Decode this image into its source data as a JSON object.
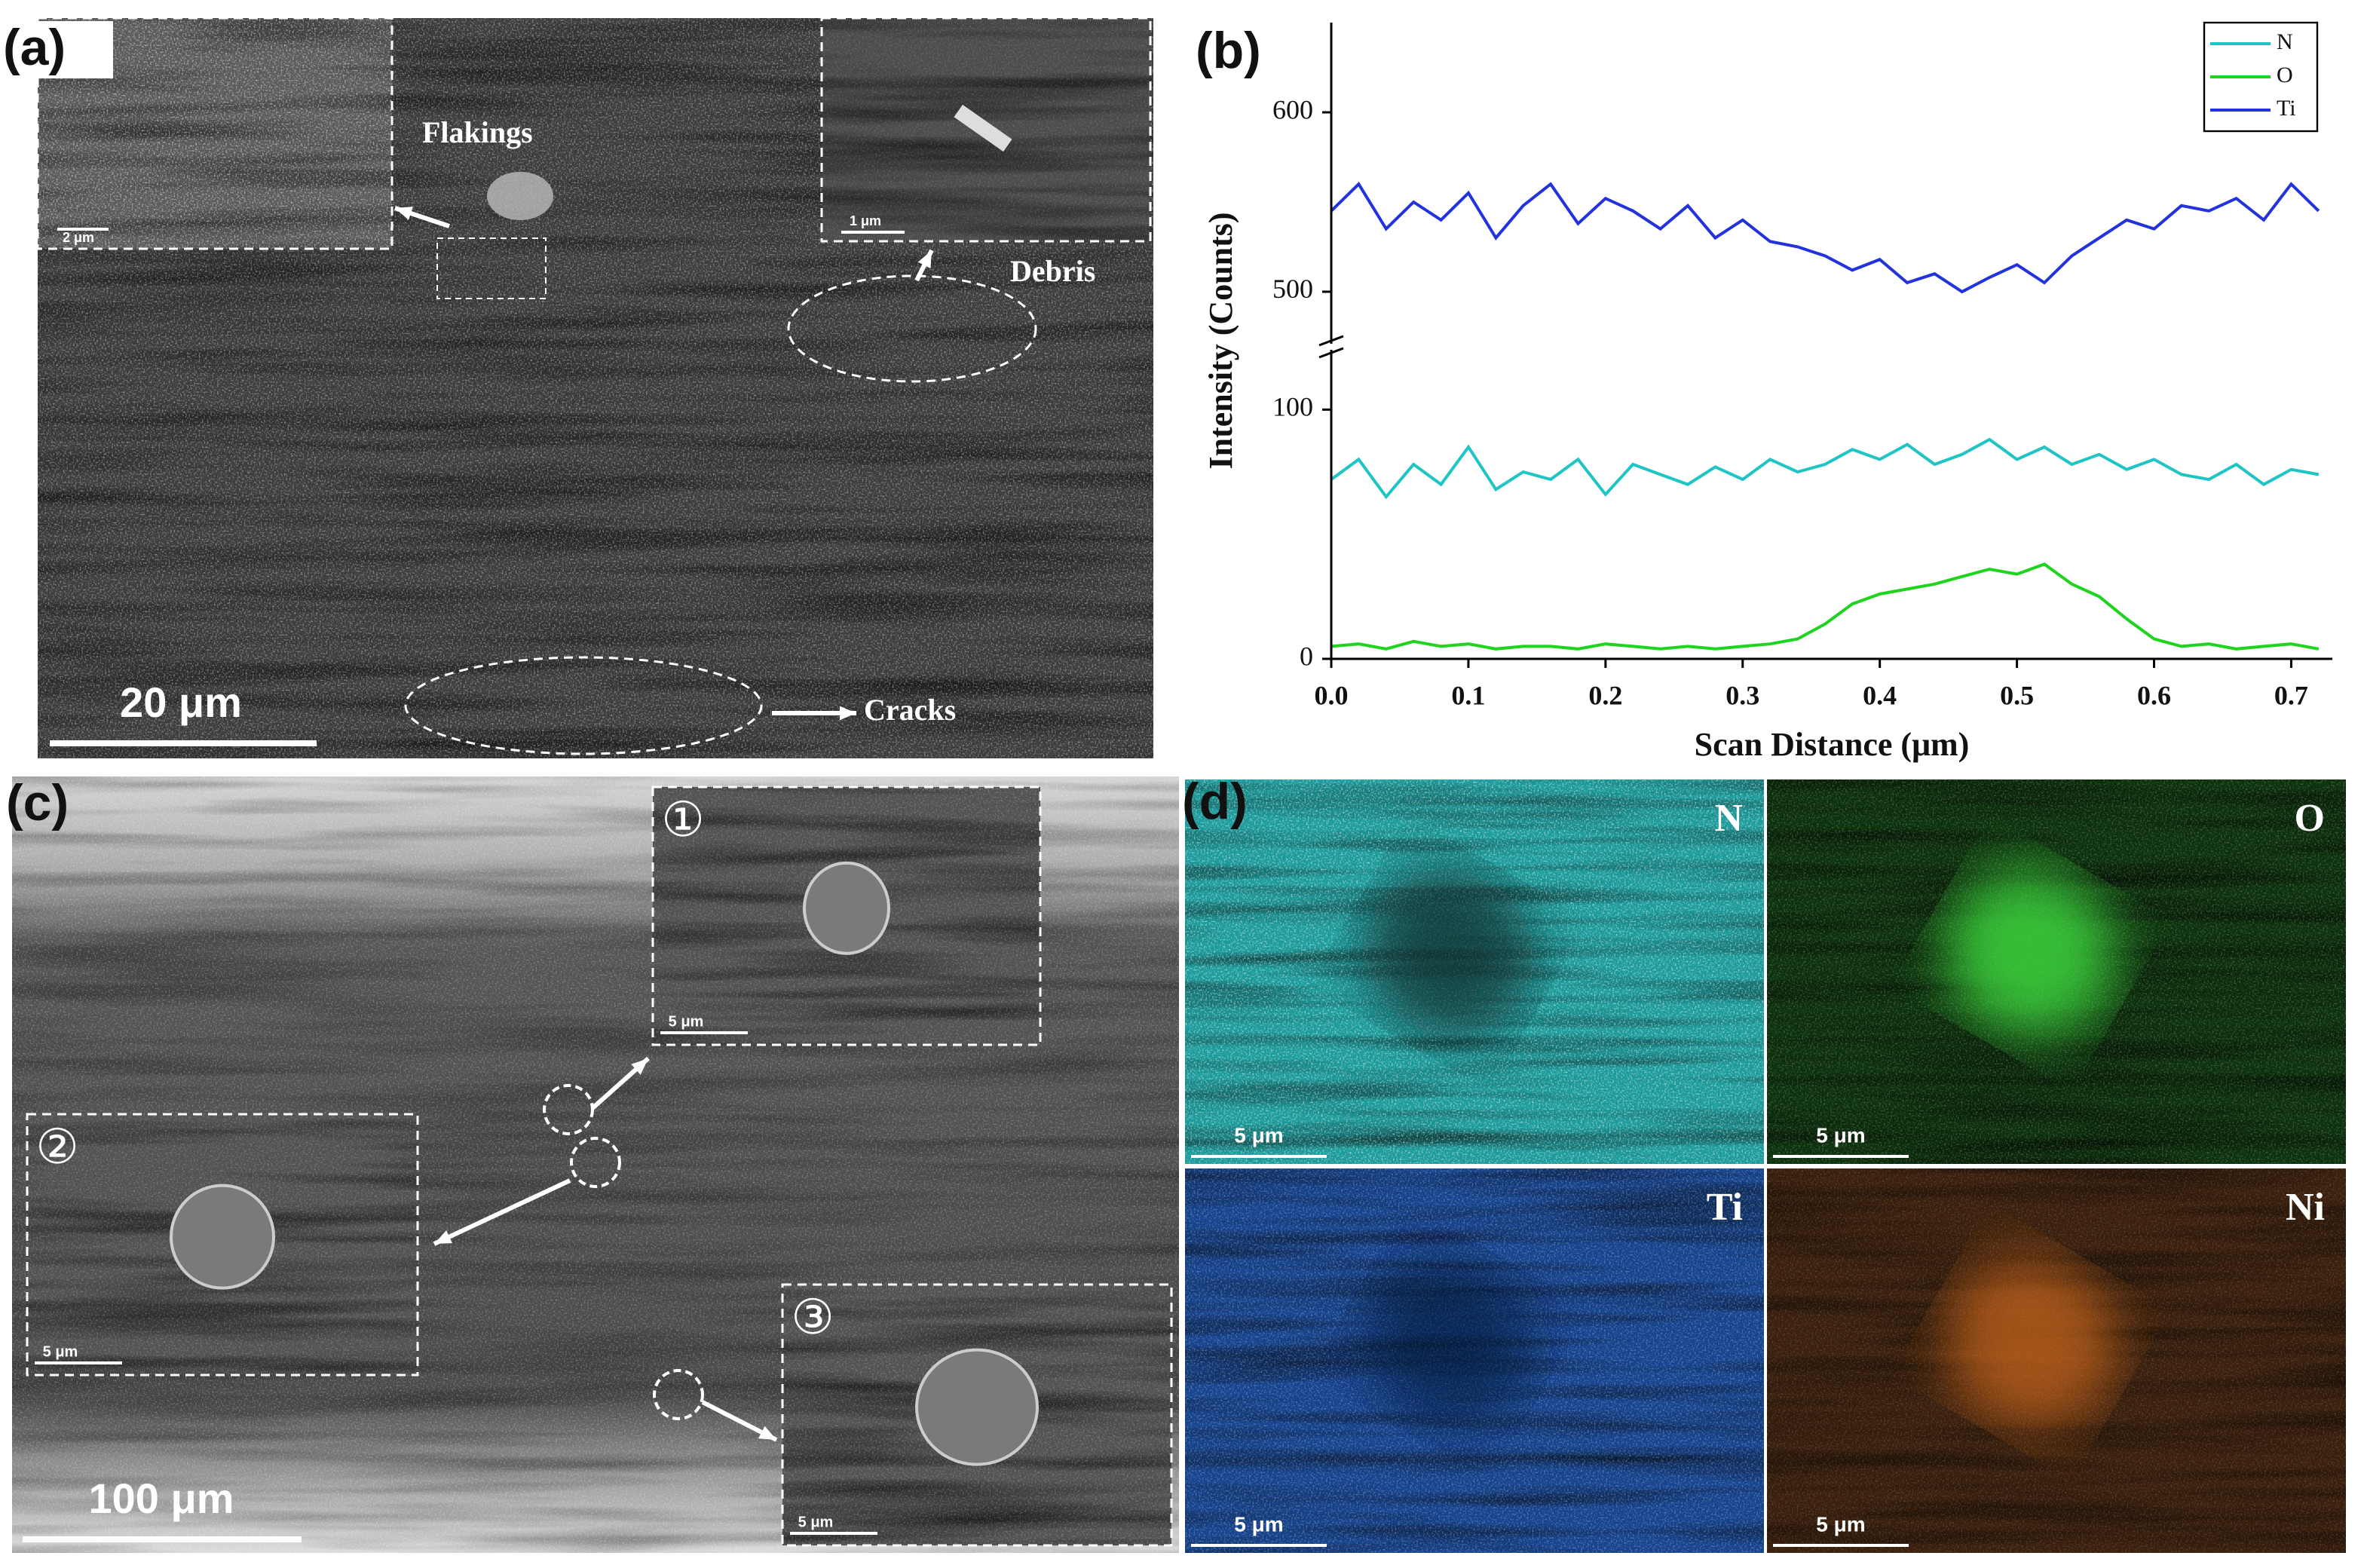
{
  "panels": {
    "a": {
      "label": "(a)",
      "annotations": [
        "Flakings",
        "Debris",
        "Cracks"
      ],
      "scale_bar": "20 μm",
      "inset_scale_bars": [
        "2 μm",
        "1 μm"
      ]
    },
    "b": {
      "label": "(b)"
    },
    "c": {
      "label": "(c)",
      "scale_bar": "100 μm",
      "insets": [
        {
          "number": "①",
          "scale_bar": "5 μm"
        },
        {
          "number": "②",
          "scale_bar": "5 μm"
        },
        {
          "number": "③",
          "scale_bar": "5 μm"
        }
      ]
    },
    "d": {
      "label": "(d)",
      "maps": [
        {
          "element": "N",
          "scale_bar": "5 μm"
        },
        {
          "element": "O",
          "scale_bar": "5 μm"
        },
        {
          "element": "Ti",
          "scale_bar": "5 μm"
        },
        {
          "element": "Ni",
          "scale_bar": "5 μm"
        }
      ]
    }
  },
  "chart_data": {
    "type": "line",
    "xlabel": "Scan Distance (μm)",
    "ylabel": "Intensity (Counts)",
    "x": [
      0,
      0.02,
      0.04,
      0.06,
      0.08,
      0.1,
      0.12,
      0.14,
      0.16,
      0.18,
      0.2,
      0.22,
      0.24,
      0.26,
      0.28,
      0.3,
      0.32,
      0.34,
      0.36,
      0.38,
      0.4,
      0.42,
      0.44,
      0.46,
      0.48,
      0.5,
      0.52,
      0.54,
      0.56,
      0.58,
      0.6,
      0.62,
      0.64,
      0.66,
      0.68,
      0.7,
      0.72
    ],
    "xlim": [
      0,
      0.73
    ],
    "xticks": [
      {
        "value": 0,
        "label": "0.0"
      },
      0.1,
      0.2,
      0.3,
      0.4,
      0.5,
      0.6,
      0.7
    ],
    "y_segments": [
      {
        "ylim": [
          0,
          124
        ],
        "yticks": [
          0,
          100
        ]
      },
      {
        "ylim": [
          471,
          650
        ],
        "yticks": [
          500,
          600
        ]
      }
    ],
    "legend": "upper right",
    "series": [
      {
        "name": "N",
        "color": "#1fc4c4",
        "values": [
          72,
          80,
          65,
          78,
          70,
          85,
          68,
          75,
          72,
          80,
          66,
          78,
          74,
          70,
          77,
          72,
          80,
          75,
          78,
          84,
          80,
          86,
          78,
          82,
          88,
          80,
          85,
          78,
          82,
          76,
          80,
          74,
          72,
          78,
          70,
          76,
          74
        ]
      },
      {
        "name": "O",
        "color": "#1ed41e",
        "values": [
          5,
          6,
          4,
          7,
          5,
          6,
          4,
          5,
          5,
          4,
          6,
          5,
          4,
          5,
          4,
          5,
          6,
          8,
          14,
          22,
          26,
          28,
          30,
          33,
          36,
          34,
          38,
          30,
          25,
          16,
          8,
          5,
          6,
          4,
          5,
          6,
          4
        ]
      },
      {
        "name": "Ti",
        "color": "#2233dd",
        "values": [
          545,
          560,
          535,
          550,
          540,
          555,
          530,
          548,
          560,
          538,
          552,
          545,
          535,
          548,
          530,
          540,
          528,
          525,
          520,
          512,
          518,
          505,
          510,
          500,
          508,
          515,
          505,
          520,
          530,
          540,
          535,
          548,
          545,
          552,
          540,
          560,
          545
        ]
      }
    ]
  }
}
